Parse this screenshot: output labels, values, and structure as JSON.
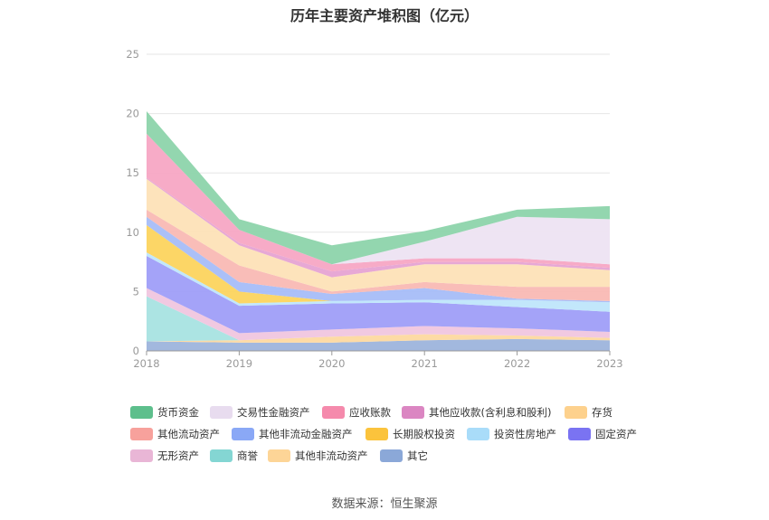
{
  "chart_data": {
    "type": "area",
    "title": "历年主要资产堆积图（亿元）",
    "source": "数据来源：恒生聚源",
    "x": [
      "2018",
      "2019",
      "2020",
      "2021",
      "2022",
      "2023"
    ],
    "ylim": [
      0,
      25
    ],
    "yticks": [
      "0",
      "5",
      "10",
      "15",
      "20",
      "25"
    ],
    "grid": true,
    "legend_position": "bottom",
    "stacked": true,
    "series": [
      {
        "name": "其它",
        "color": "#9db4dc",
        "values": [
          0.8,
          0.7,
          0.7,
          0.9,
          1.0,
          0.9
        ]
      },
      {
        "name": "其他非流动资产",
        "color": "#fdd9a0",
        "values": [
          0.0,
          0.2,
          0.5,
          0.5,
          0.3,
          0.2
        ]
      },
      {
        "name": "商誉",
        "color": "#a8e3e1",
        "values": [
          3.8,
          0.0,
          0.0,
          0.0,
          0.0,
          0.0
        ]
      },
      {
        "name": "无形资产",
        "color": "#f0c6df",
        "values": [
          0.7,
          0.6,
          0.6,
          0.7,
          0.6,
          0.5
        ]
      },
      {
        "name": "固定资产",
        "color": "#9f9ef8",
        "values": [
          2.7,
          2.3,
          2.2,
          2.0,
          1.8,
          1.7
        ]
      },
      {
        "name": "投资性房地产",
        "color": "#bfe6fb",
        "values": [
          0.3,
          0.2,
          0.2,
          0.2,
          0.6,
          0.8
        ]
      },
      {
        "name": "长期股权投资",
        "color": "#fcd45e",
        "values": [
          2.3,
          1.0,
          0.0,
          0.0,
          0.0,
          0.0
        ]
      },
      {
        "name": "其他非流动金融资产",
        "color": "#a7bdf8",
        "values": [
          0.7,
          0.8,
          0.6,
          1.0,
          0.1,
          0.1
        ]
      },
      {
        "name": "其他流动资产",
        "color": "#f9b9b4",
        "values": [
          0.6,
          1.4,
          0.2,
          0.5,
          1.0,
          1.2
        ]
      },
      {
        "name": "存货",
        "color": "#fde2b7",
        "values": [
          2.6,
          1.7,
          1.2,
          1.5,
          1.9,
          1.4
        ]
      },
      {
        "name": "其他应收款(含利息和股利)",
        "color": "#e6a3d3",
        "values": [
          0.1,
          0.2,
          0.5,
          0.2,
          0.2,
          0.2
        ]
      },
      {
        "name": "应收账款",
        "color": "#f7a7c4",
        "values": [
          3.7,
          1.1,
          0.6,
          0.3,
          0.3,
          0.3
        ]
      },
      {
        "name": "交易性金融资产",
        "color": "#ede3f2",
        "values": [
          0.0,
          0.0,
          0.0,
          1.4,
          3.5,
          3.8
        ]
      },
      {
        "name": "货币资金",
        "color": "#8dd4ab",
        "values": [
          1.9,
          0.9,
          1.6,
          0.9,
          0.6,
          1.1
        ]
      }
    ]
  },
  "legend": [
    {
      "label": "货币资金",
      "color": "#5dbf8c"
    },
    {
      "label": "交易性金融资产",
      "color": "#e8dcef"
    },
    {
      "label": "应收账款",
      "color": "#f58aac"
    },
    {
      "label": "其他应收款(含利息和股利)",
      "color": "#db86c2"
    },
    {
      "label": "存货",
      "color": "#fdd18d"
    },
    {
      "label": "其他流动资产",
      "color": "#f7a19c"
    },
    {
      "label": "其他非流动金融资产",
      "color": "#8aa8f6"
    },
    {
      "label": "长期股权投资",
      "color": "#fbc33c"
    },
    {
      "label": "投资性房地产",
      "color": "#a9dcf9"
    },
    {
      "label": "固定资产",
      "color": "#7a73f2"
    },
    {
      "label": "无形资产",
      "color": "#e9b6d6"
    },
    {
      "label": "商誉",
      "color": "#84d6d3"
    },
    {
      "label": "其他非流动资产",
      "color": "#fdd597"
    },
    {
      "label": "其它",
      "color": "#8ba8d8"
    }
  ]
}
